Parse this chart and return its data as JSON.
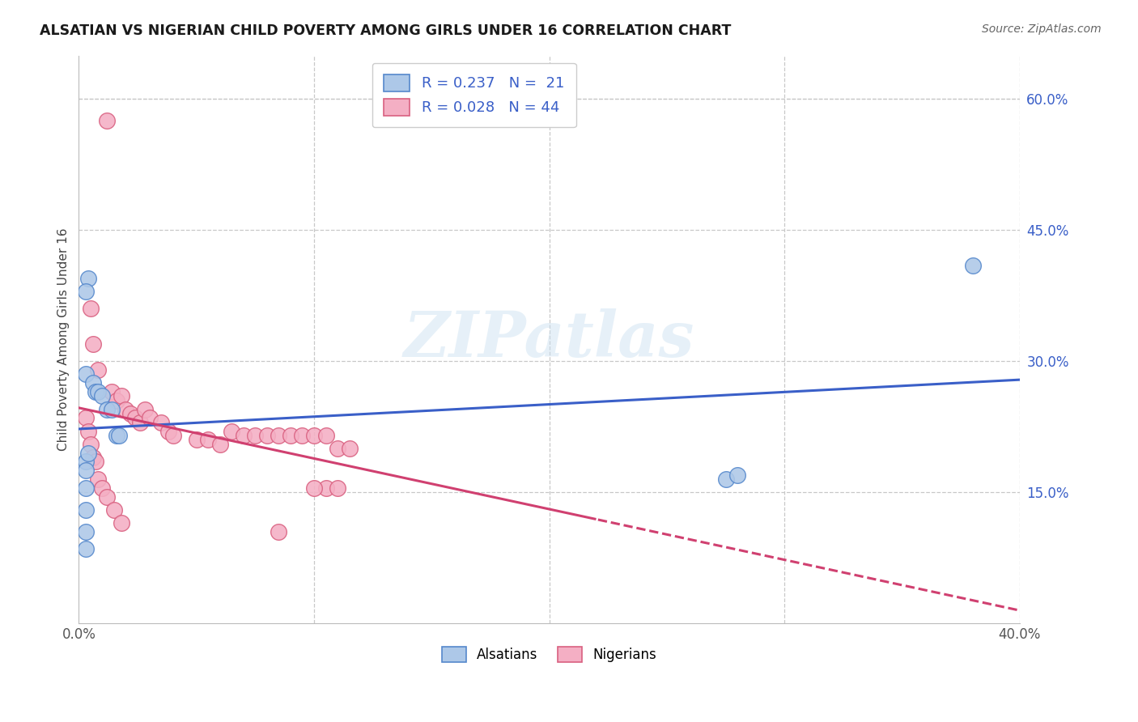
{
  "title": "ALSATIAN VS NIGERIAN CHILD POVERTY AMONG GIRLS UNDER 16 CORRELATION CHART",
  "source": "Source: ZipAtlas.com",
  "ylabel": "Child Poverty Among Girls Under 16",
  "xlim": [
    0.0,
    0.4
  ],
  "ylim": [
    0.0,
    0.65
  ],
  "y_ticks_right": [
    0.15,
    0.3,
    0.45,
    0.6
  ],
  "x_ticks": [
    0.0,
    0.1,
    0.2,
    0.3,
    0.4
  ],
  "alsatian_color": "#adc8e8",
  "nigerian_color": "#f4afc4",
  "alsatian_edge": "#5588cc",
  "nigerian_edge": "#d96080",
  "trend_blue": "#3a5fc8",
  "trend_pink": "#d04070",
  "background": "#ffffff",
  "grid_color": "#c8c8c8",
  "watermark": "ZIPatlas",
  "alsatian_x": [
    0.003,
    0.004,
    0.006,
    0.007,
    0.008,
    0.01,
    0.012,
    0.014,
    0.003,
    0.004,
    0.003,
    0.003,
    0.016,
    0.017,
    0.275,
    0.28,
    0.003,
    0.003,
    0.003,
    0.003,
    0.38
  ],
  "alsatian_y": [
    0.285,
    0.395,
    0.275,
    0.265,
    0.265,
    0.26,
    0.245,
    0.245,
    0.185,
    0.195,
    0.155,
    0.175,
    0.215,
    0.215,
    0.165,
    0.17,
    0.105,
    0.13,
    0.085,
    0.38,
    0.41
  ],
  "nigerian_x": [
    0.012,
    0.005,
    0.006,
    0.008,
    0.014,
    0.016,
    0.018,
    0.02,
    0.022,
    0.024,
    0.026,
    0.028,
    0.03,
    0.035,
    0.038,
    0.04,
    0.05,
    0.055,
    0.06,
    0.065,
    0.07,
    0.075,
    0.08,
    0.085,
    0.09,
    0.095,
    0.1,
    0.105,
    0.11,
    0.115,
    0.003,
    0.004,
    0.005,
    0.006,
    0.007,
    0.008,
    0.01,
    0.012,
    0.015,
    0.018,
    0.105,
    0.11,
    0.1,
    0.085
  ],
  "nigerian_y": [
    0.575,
    0.36,
    0.32,
    0.29,
    0.265,
    0.255,
    0.26,
    0.245,
    0.24,
    0.235,
    0.23,
    0.245,
    0.235,
    0.23,
    0.22,
    0.215,
    0.21,
    0.21,
    0.205,
    0.22,
    0.215,
    0.215,
    0.215,
    0.215,
    0.215,
    0.215,
    0.215,
    0.215,
    0.2,
    0.2,
    0.235,
    0.22,
    0.205,
    0.19,
    0.185,
    0.165,
    0.155,
    0.145,
    0.13,
    0.115,
    0.155,
    0.155,
    0.155,
    0.105
  ]
}
